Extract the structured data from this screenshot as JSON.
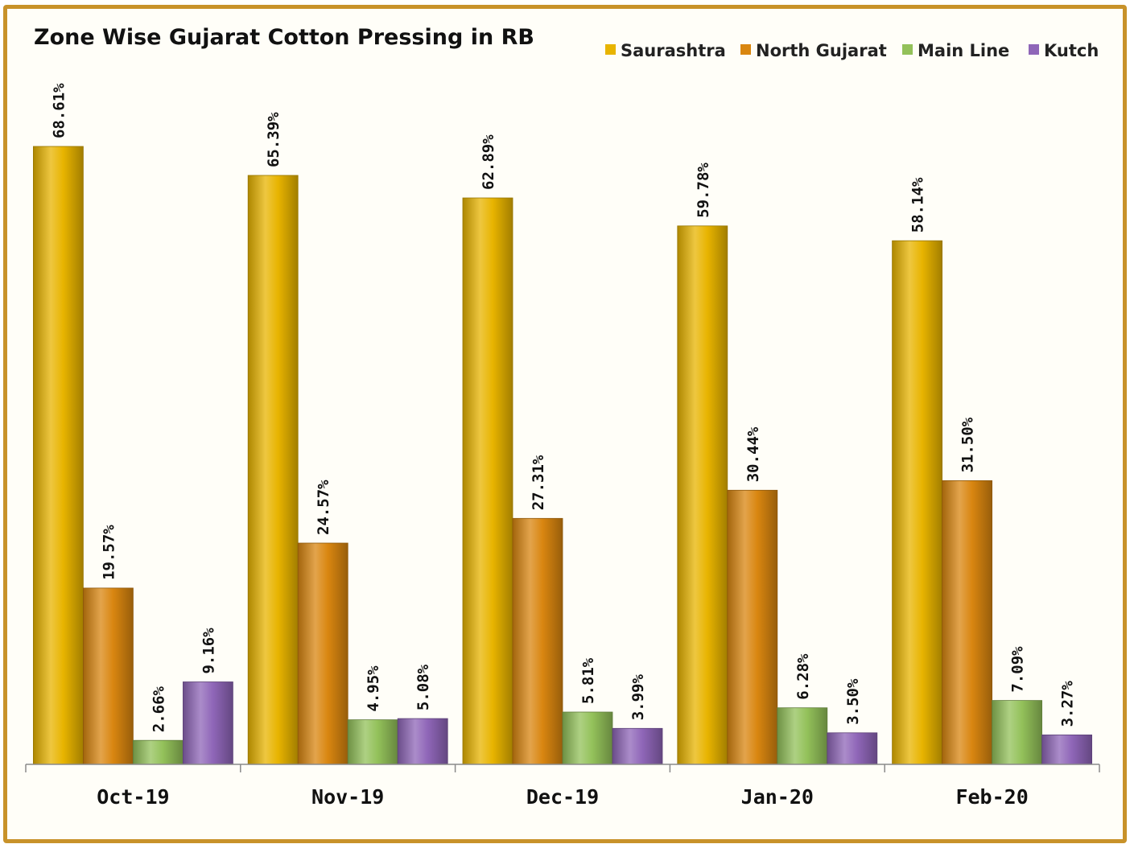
{
  "chart_data": {
    "type": "bar",
    "title": "Zone Wise Gujarat Cotton Pressing in RB",
    "xlabel": "",
    "ylabel": "",
    "ylim": [
      0,
      80
    ],
    "grid": false,
    "legend_position": "top-right",
    "categories": [
      "Oct-19",
      "Nov-19",
      "Dec-19",
      "Jan-20",
      "Feb-20"
    ],
    "series": [
      {
        "name": "Saurashtra",
        "color": "#e8b400",
        "values": [
          68.61,
          65.39,
          62.89,
          59.78,
          58.14
        ],
        "labels": [
          "68.61%",
          "65.39%",
          "62.89%",
          "59.78%",
          "58.14%"
        ]
      },
      {
        "name": "North Gujarat",
        "color": "#d98610",
        "values": [
          19.57,
          24.57,
          27.31,
          30.44,
          31.5
        ],
        "labels": [
          "19.57%",
          "24.57%",
          "27.31%",
          "30.44%",
          "31.50%"
        ]
      },
      {
        "name": "Main Line",
        "color": "#93c15a",
        "values": [
          2.66,
          4.95,
          5.81,
          6.28,
          7.09
        ],
        "labels": [
          "2.66%",
          "4.95%",
          "5.81%",
          "6.28%",
          "7.09%"
        ]
      },
      {
        "name": "Kutch",
        "color": "#8f66b8",
        "values": [
          9.16,
          5.08,
          3.99,
          3.5,
          3.27
        ],
        "labels": [
          "9.16%",
          "5.08%",
          "3.99%",
          "3.50%",
          "3.27%"
        ]
      }
    ]
  }
}
